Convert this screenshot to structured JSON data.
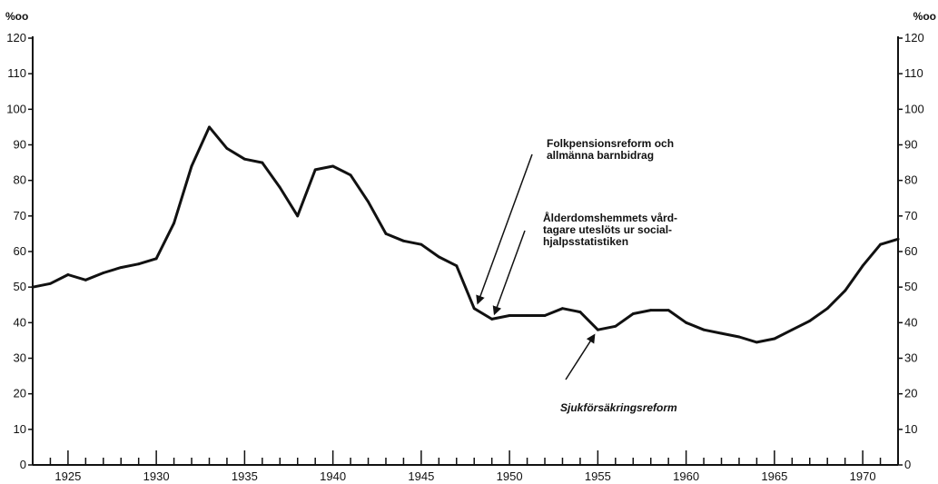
{
  "chart_data": {
    "type": "line",
    "title": "",
    "xlabel": "",
    "ylabel": "",
    "unit_left": "%oo",
    "unit_right": "%oo",
    "xlim": [
      1923,
      1972
    ],
    "ylim": [
      0,
      120
    ],
    "x_ticks": [
      1925,
      1930,
      1935,
      1940,
      1945,
      1950,
      1955,
      1960,
      1965,
      1970
    ],
    "y_ticks": [
      0,
      10,
      20,
      30,
      40,
      50,
      60,
      70,
      80,
      90,
      100,
      110,
      120
    ],
    "grid": false,
    "series": [
      {
        "x": [
          1923,
          1924,
          1925,
          1926,
          1927,
          1928,
          1929,
          1930,
          1931,
          1932,
          1933,
          1934,
          1935,
          1936,
          1937,
          1938,
          1939,
          1940,
          1941,
          1942,
          1943,
          1944,
          1945,
          1946,
          1947,
          1948,
          1949,
          1950,
          1951,
          1952,
          1953,
          1954,
          1955,
          1956,
          1957,
          1958,
          1959,
          1960,
          1961,
          1962,
          1963,
          1964,
          1965,
          1966,
          1967,
          1968,
          1969,
          1970,
          1971,
          1972
        ],
        "y": [
          50,
          51,
          53.5,
          52,
          54,
          55.5,
          56.5,
          58,
          68,
          84,
          95,
          89,
          86,
          85,
          78,
          70,
          83,
          84,
          81.5,
          74,
          65,
          63,
          62,
          58.5,
          56,
          44,
          41,
          42,
          42,
          42,
          44,
          43,
          38,
          39,
          42.5,
          43.5,
          43.5,
          40,
          38,
          37,
          36,
          34.5,
          35.5,
          38,
          40.5,
          44,
          49,
          56,
          62,
          63.5
        ]
      }
    ],
    "annotations": [
      {
        "lines": [
          "Folkpensionsreform och",
          "allmänna barnbidrag"
        ],
        "arrow_to": [
          1948,
          44
        ]
      },
      {
        "lines": [
          "Ålderdomshemmets vård-",
          "tagare uteslöts ur social-",
          "hjalpsstatistiken"
        ],
        "arrow_to": [
          1949,
          41
        ]
      },
      {
        "lines": [
          "Sjukförsäkringsreform"
        ],
        "arrow_to": [
          1955,
          38
        ]
      }
    ]
  }
}
